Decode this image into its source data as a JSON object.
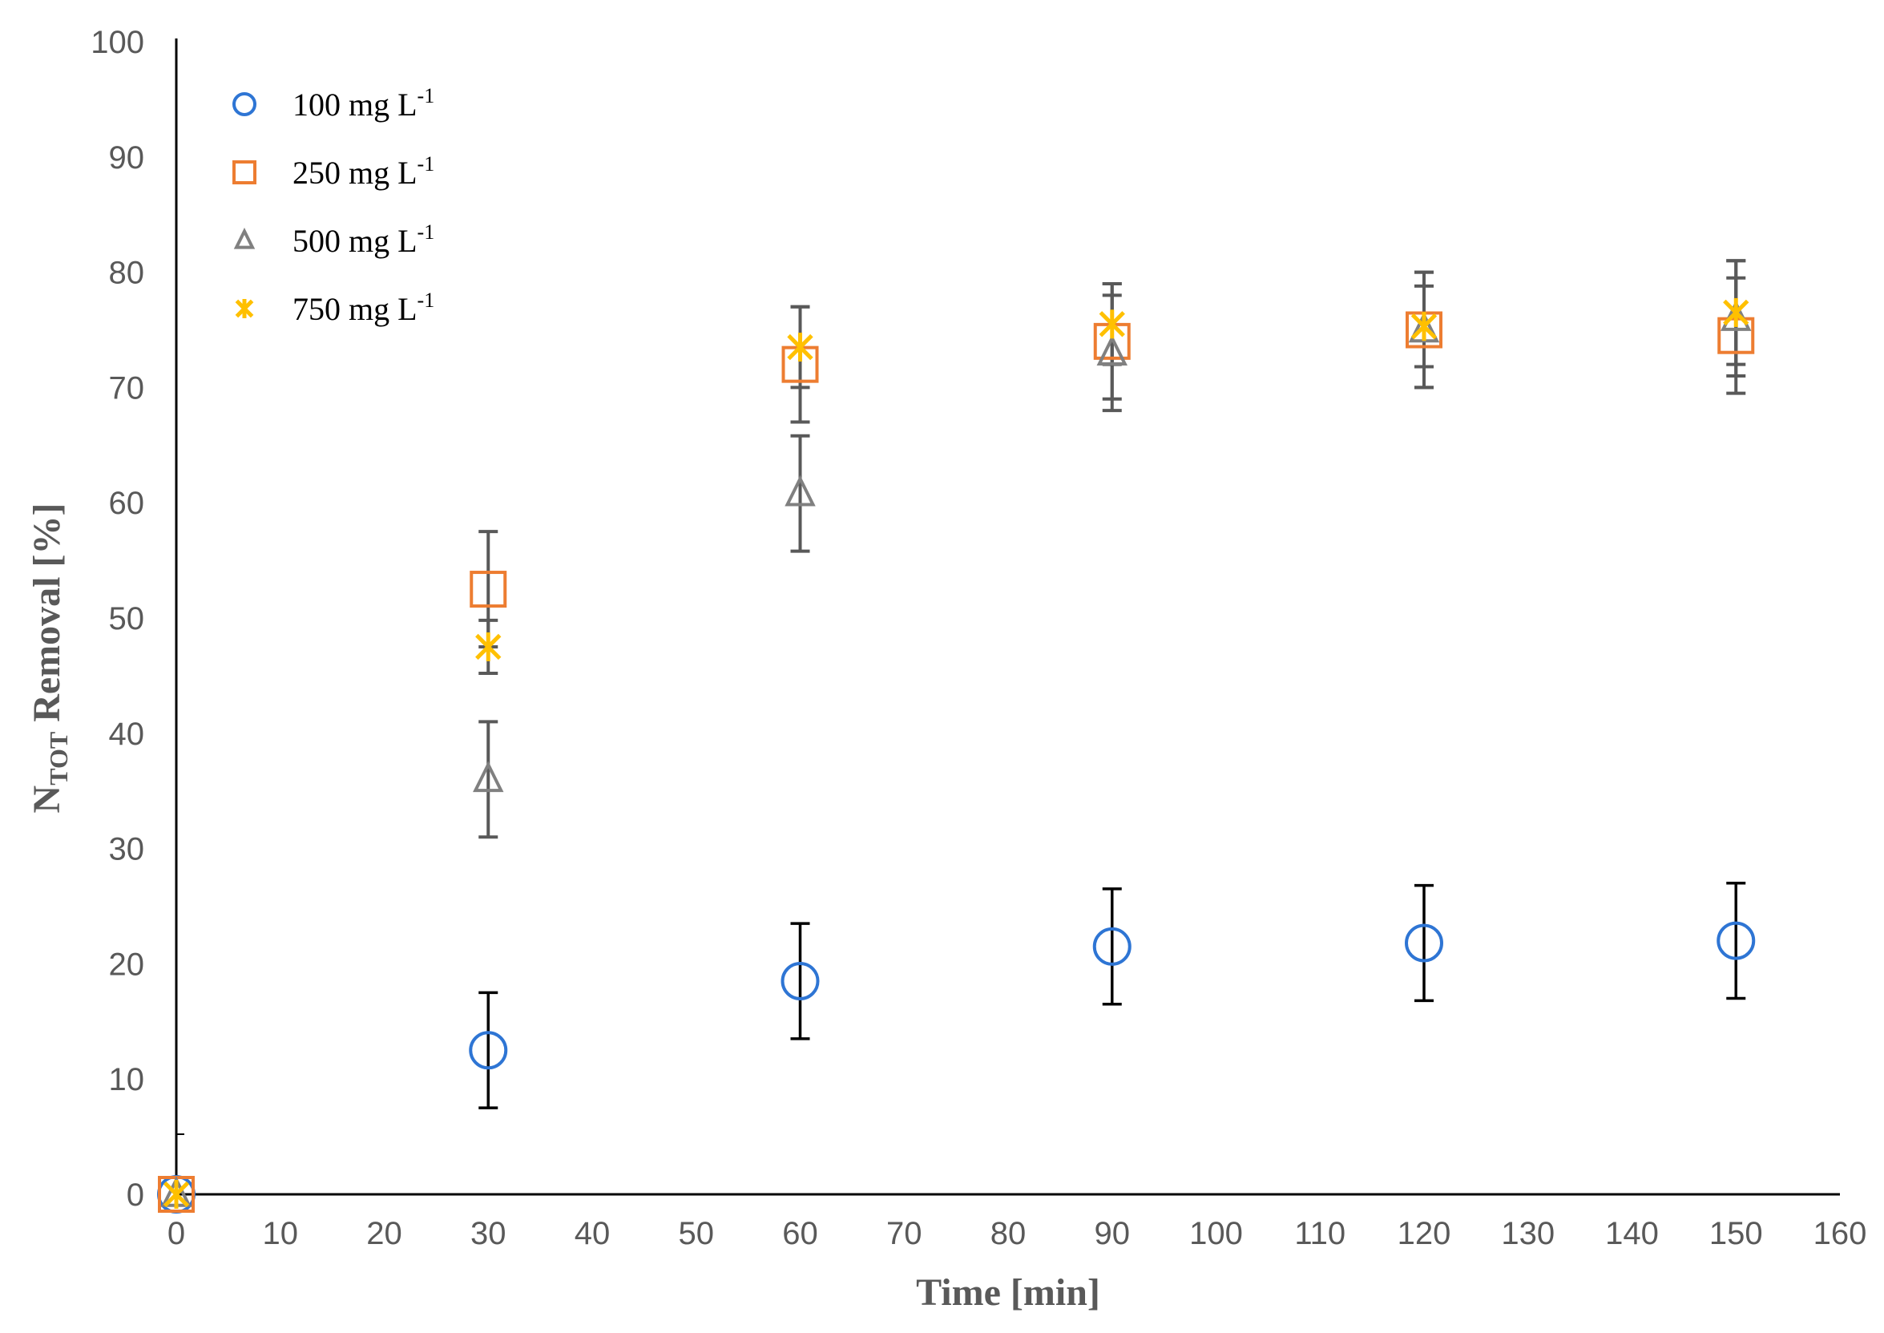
{
  "chart_data": {
    "type": "scatter",
    "title": "",
    "xlabel": "Time [min]",
    "ylabel": {
      "main": "N",
      "sub": "TOT",
      "rest": " Removal [%]"
    },
    "xlim": [
      0,
      160
    ],
    "ylim": [
      0,
      100
    ],
    "x_ticks": [
      0,
      10,
      20,
      30,
      40,
      50,
      60,
      70,
      80,
      90,
      100,
      110,
      120,
      130,
      140,
      150,
      160
    ],
    "y_ticks": [
      0,
      10,
      20,
      30,
      40,
      50,
      60,
      70,
      80,
      90,
      100
    ],
    "x": [
      0,
      30,
      60,
      90,
      120,
      150
    ],
    "legend_position": "top-left",
    "grid": false,
    "series": [
      {
        "name": "100 mg L",
        "name_sup": "-1",
        "marker": "circle",
        "color": "#2E75D4",
        "error_color": "#000000",
        "values": [
          0,
          12.5,
          18.5,
          21.5,
          21.8,
          22.0
        ],
        "errors": [
          0,
          5,
          5,
          5,
          5,
          5
        ]
      },
      {
        "name": "250 mg L",
        "name_sup": "-1",
        "marker": "square",
        "color": "#ED7D31",
        "error_color": "#595959",
        "values": [
          0,
          52.5,
          72.0,
          74.0,
          75.0,
          74.5
        ],
        "errors": [
          0,
          5,
          5,
          5,
          5,
          5
        ]
      },
      {
        "name": "500 mg L",
        "name_sup": "-1",
        "marker": "triangle",
        "color": "#808080",
        "error_color": "#595959",
        "values": [
          0,
          36.0,
          60.8,
          73.0,
          75.0,
          76.0
        ],
        "errors": [
          0,
          5,
          5,
          5,
          5,
          5
        ]
      },
      {
        "name": "750 mg L",
        "name_sup": "-1",
        "marker": "asterisk",
        "color": "#FFC000",
        "error_color": "#595959",
        "values": [
          0,
          47.5,
          73.5,
          75.5,
          75.3,
          76.5
        ],
        "errors": [
          0,
          2.3,
          3.5,
          3.5,
          3.5,
          4.5
        ]
      }
    ]
  }
}
